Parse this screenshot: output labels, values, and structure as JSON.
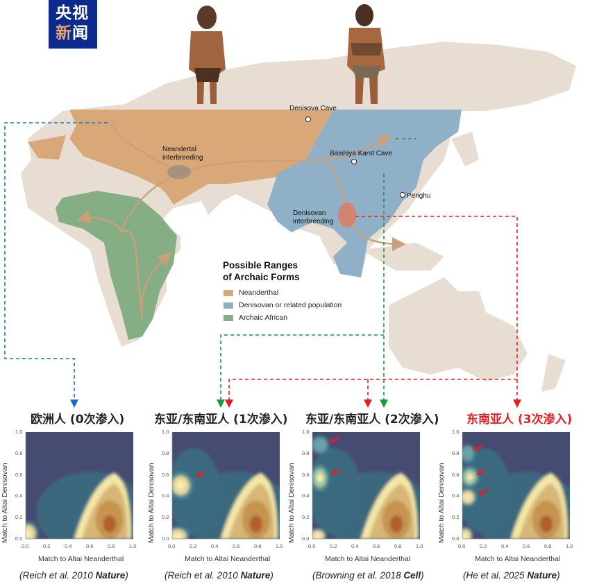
{
  "logo": {
    "line1": "央视",
    "line2a": "新",
    "line2b": "闻",
    "color": "#0b2a8c"
  },
  "map": {
    "sites": [
      "Denisova Cave",
      "Baishiya Karst Cave",
      "Penghu"
    ],
    "events": [
      "Neandertal interbreeding",
      "Denisovan interbreeding"
    ],
    "legend": {
      "title_line1": "Possible Ranges",
      "title_line2": "of Archaic Forms",
      "items": [
        {
          "label": "Neanderthal",
          "color": "#d9a878"
        },
        {
          "label": "Denisovan or related population",
          "color": "#8fb0c6"
        },
        {
          "label": "Archaic African",
          "color": "#86ae84"
        }
      ]
    },
    "arrow_colors": {
      "europe": "#1a6fc4",
      "green": "#1a9a3a",
      "red": "#e02020"
    }
  },
  "panels": [
    {
      "title": "欧洲人 (0次渗入)",
      "title_color": "#222222",
      "citation_pre": "(Reich et al. 2010 ",
      "citation_journal": "Nature",
      "citation_post": ")",
      "red_arrows": 0
    },
    {
      "title": "东亚/东南亚人 (1次渗入)",
      "title_color": "#222222",
      "citation_pre": "(Reich et al. 2010 ",
      "citation_journal": "Nature",
      "citation_post": ")",
      "red_arrows": 1
    },
    {
      "title": "东亚/东南亚人 (2次渗入)",
      "title_color": "#222222",
      "citation_pre": "(Browning et al. 2018 ",
      "citation_journal": "Cell",
      "citation_post": ")",
      "red_arrows": 2
    },
    {
      "title": "东南亚人 (3次渗入)",
      "title_color": "#e41e26",
      "citation_pre": "(He et al. 2025 ",
      "citation_journal": "Nature",
      "citation_post": ")",
      "red_arrows": 3
    }
  ],
  "axes": {
    "xlabel": "Match to Altai Neanderthal",
    "ylabel": "Match to Altai Denisovan",
    "ticks": [
      "0.0",
      "0.2",
      "0.4",
      "0.6",
      "0.8",
      "1.0"
    ],
    "xlim": [
      0,
      1
    ],
    "ylim": [
      0,
      1
    ]
  }
}
